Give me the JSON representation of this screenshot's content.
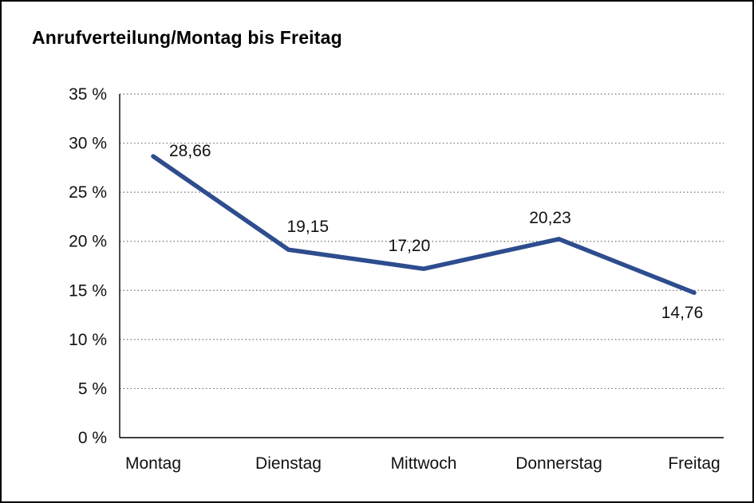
{
  "chart_data": {
    "type": "line",
    "title": "Anrufverteilung/Montag bis Freitag",
    "categories": [
      "Montag",
      "Dienstag",
      "Mittwoch",
      "Donnerstag",
      "Freitag"
    ],
    "values": [
      28.66,
      19.15,
      17.2,
      20.23,
      14.76
    ],
    "point_labels": [
      "28,66",
      "19,15",
      "17,20",
      "20,23",
      "14,76"
    ],
    "y_ticks": [
      {
        "v": 35,
        "label": "35 %"
      },
      {
        "v": 30,
        "label": "30 %"
      },
      {
        "v": 25,
        "label": "25 %"
      },
      {
        "v": 20,
        "label": "20 %"
      },
      {
        "v": 15,
        "label": "15 %"
      },
      {
        "v": 10,
        "label": "10 %"
      },
      {
        "v": 5,
        "label": "5 %"
      },
      {
        "v": 0,
        "label": "0 %"
      }
    ],
    "ylim": [
      0,
      35
    ],
    "xlabel": "",
    "ylabel": "",
    "legend": "none",
    "grid": "horizontal-dotted",
    "colors": {
      "line": "#2e4d8e",
      "grid": "#707070",
      "axis": "#000000",
      "text": "#111111"
    }
  }
}
